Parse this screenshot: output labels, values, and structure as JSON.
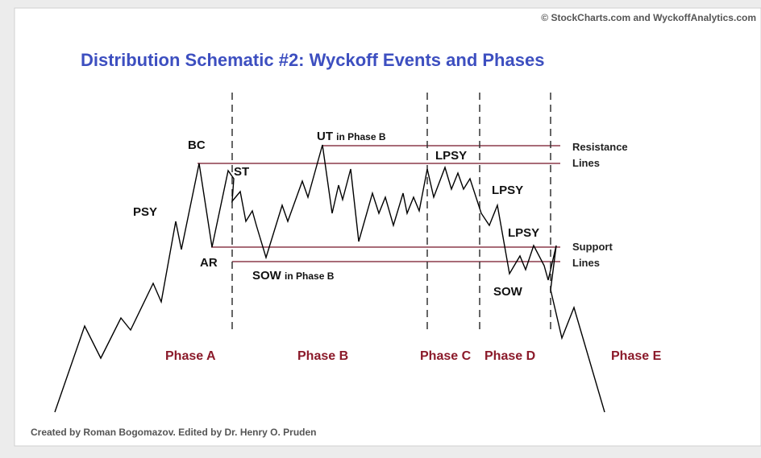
{
  "copyright": "© StockCharts.com and WyckoffAnalytics.com",
  "title": "Distribution Schematic #2: Wyckoff Events and Phases",
  "credit": "Created by Roman Bogomazov. Edited by Dr. Henry O. Pruden",
  "events": [
    {
      "label": "BC"
    },
    {
      "label": "ST"
    },
    {
      "label": "PSY"
    },
    {
      "label": "AR"
    },
    {
      "label": "SOW",
      "note": "in Phase B"
    },
    {
      "label": "UT",
      "note": "in Phase B"
    },
    {
      "label": "LPSY"
    },
    {
      "label": "LPSY"
    },
    {
      "label": "LPSY"
    },
    {
      "label": "SOW"
    }
  ],
  "lines": {
    "resistance": [
      "Resistance",
      "Lines"
    ],
    "support": [
      "Support",
      "Lines"
    ]
  },
  "phases": [
    "Phase A",
    "Phase B",
    "Phase C",
    "Phase D",
    "Phase E"
  ]
}
